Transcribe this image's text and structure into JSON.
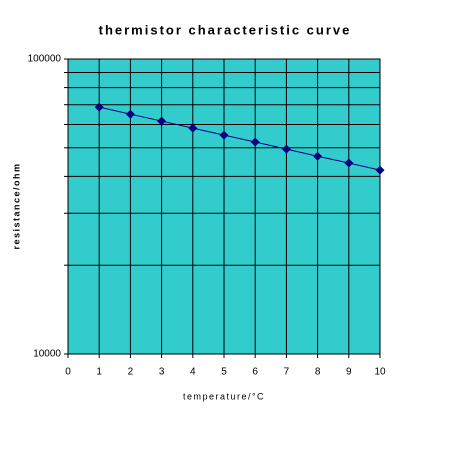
{
  "chart_data": {
    "type": "line",
    "title": "thermistor characteristic curve",
    "x_label": "temperature/°C",
    "y_label": "resistance/ohm",
    "x": [
      1,
      2,
      3,
      4,
      5,
      6,
      7,
      8,
      9,
      10
    ],
    "series": [
      {
        "name": "resistance",
        "color": "#000080",
        "values": [
          68700,
          65000,
          61600,
          58300,
          55200,
          52300,
          49500,
          46800,
          44400,
          42000
        ]
      }
    ],
    "xlim": [
      0,
      10
    ],
    "xticks": [
      0,
      1,
      2,
      3,
      4,
      5,
      6,
      7,
      8,
      9,
      10
    ],
    "ylim": [
      10000,
      100000
    ],
    "yticks": [
      10000,
      20000,
      30000,
      40000,
      50000,
      60000,
      70000,
      80000,
      90000,
      100000
    ],
    "y_log": true,
    "grid": true,
    "background": "#33cccc"
  }
}
